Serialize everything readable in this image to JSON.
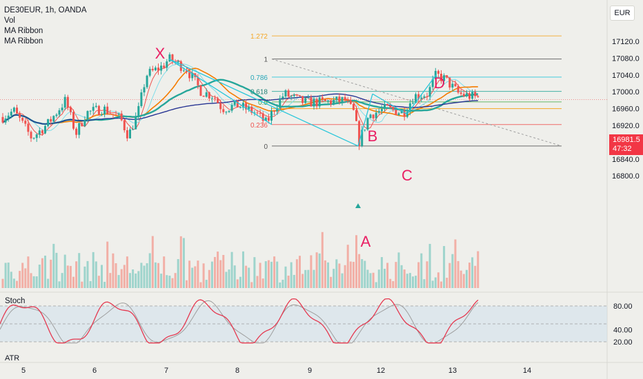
{
  "header": {
    "symbol": "DE30EUR, 1h, OANDA",
    "indicators": [
      "Vol",
      "MA Ribbon",
      "MA Ribbon"
    ],
    "currency": "EUR"
  },
  "price_tag": {
    "price": "16981.5",
    "countdown": "47:32"
  },
  "stoch": {
    "label": "Stoch",
    "ticks": [
      "80.00",
      "40.00",
      "20.00"
    ]
  },
  "atr": {
    "label": "ATR"
  },
  "colors": {
    "up": "#26a69a",
    "down": "#ef5350",
    "fib_line": "#26c6da",
    "wave_letters": "#e91e63",
    "ma_teal": "#26a69a",
    "ma_orange": "#f57c00",
    "ma_navy": "#283593",
    "stoch_k": "#e53950",
    "stoch_d": "#9e9e9e",
    "stoch_band": "#cfe0ec"
  },
  "chart_data": [
    {
      "type": "candlestick",
      "panel": "price",
      "symbol": "DE30EUR",
      "timeframe": "1h",
      "x_ticks": [
        "5",
        "6",
        "7",
        "8",
        "9",
        "12",
        "13",
        "14"
      ],
      "y_ticks": [
        17120,
        17080,
        17040,
        17000,
        16960,
        16920,
        16880,
        16840,
        16800
      ],
      "y_range": [
        16780,
        17160
      ],
      "last_price": 16981.5,
      "pattern_points": [
        {
          "label": "X",
          "price": 17078
        },
        {
          "label": "A",
          "price": 16871
        },
        {
          "label": "B",
          "price": 16995
        },
        {
          "label": "C",
          "price": 16947
        },
        {
          "label": "D",
          "price": 17040
        }
      ],
      "fib_levels": [
        {
          "label": "1.272",
          "price": 17133
        },
        {
          "label": "1",
          "price": 17078
        },
        {
          "label": "0.786",
          "price": 17035
        },
        {
          "label": "0.618",
          "price": 17001
        },
        {
          "label": "0.5",
          "price": 16976
        },
        {
          "label": "0.236",
          "price": 16922
        },
        {
          "label": "0",
          "price": 16871
        }
      ],
      "grid": false
    },
    {
      "type": "bar",
      "panel": "volume",
      "series_name": "Vol",
      "colors_by_direction": true
    },
    {
      "type": "line",
      "panel": "stoch",
      "title": "Stoch",
      "y_ticks": [
        80,
        40,
        20
      ],
      "y_range": [
        15,
        95
      ],
      "band": [
        20,
        80
      ]
    }
  ]
}
